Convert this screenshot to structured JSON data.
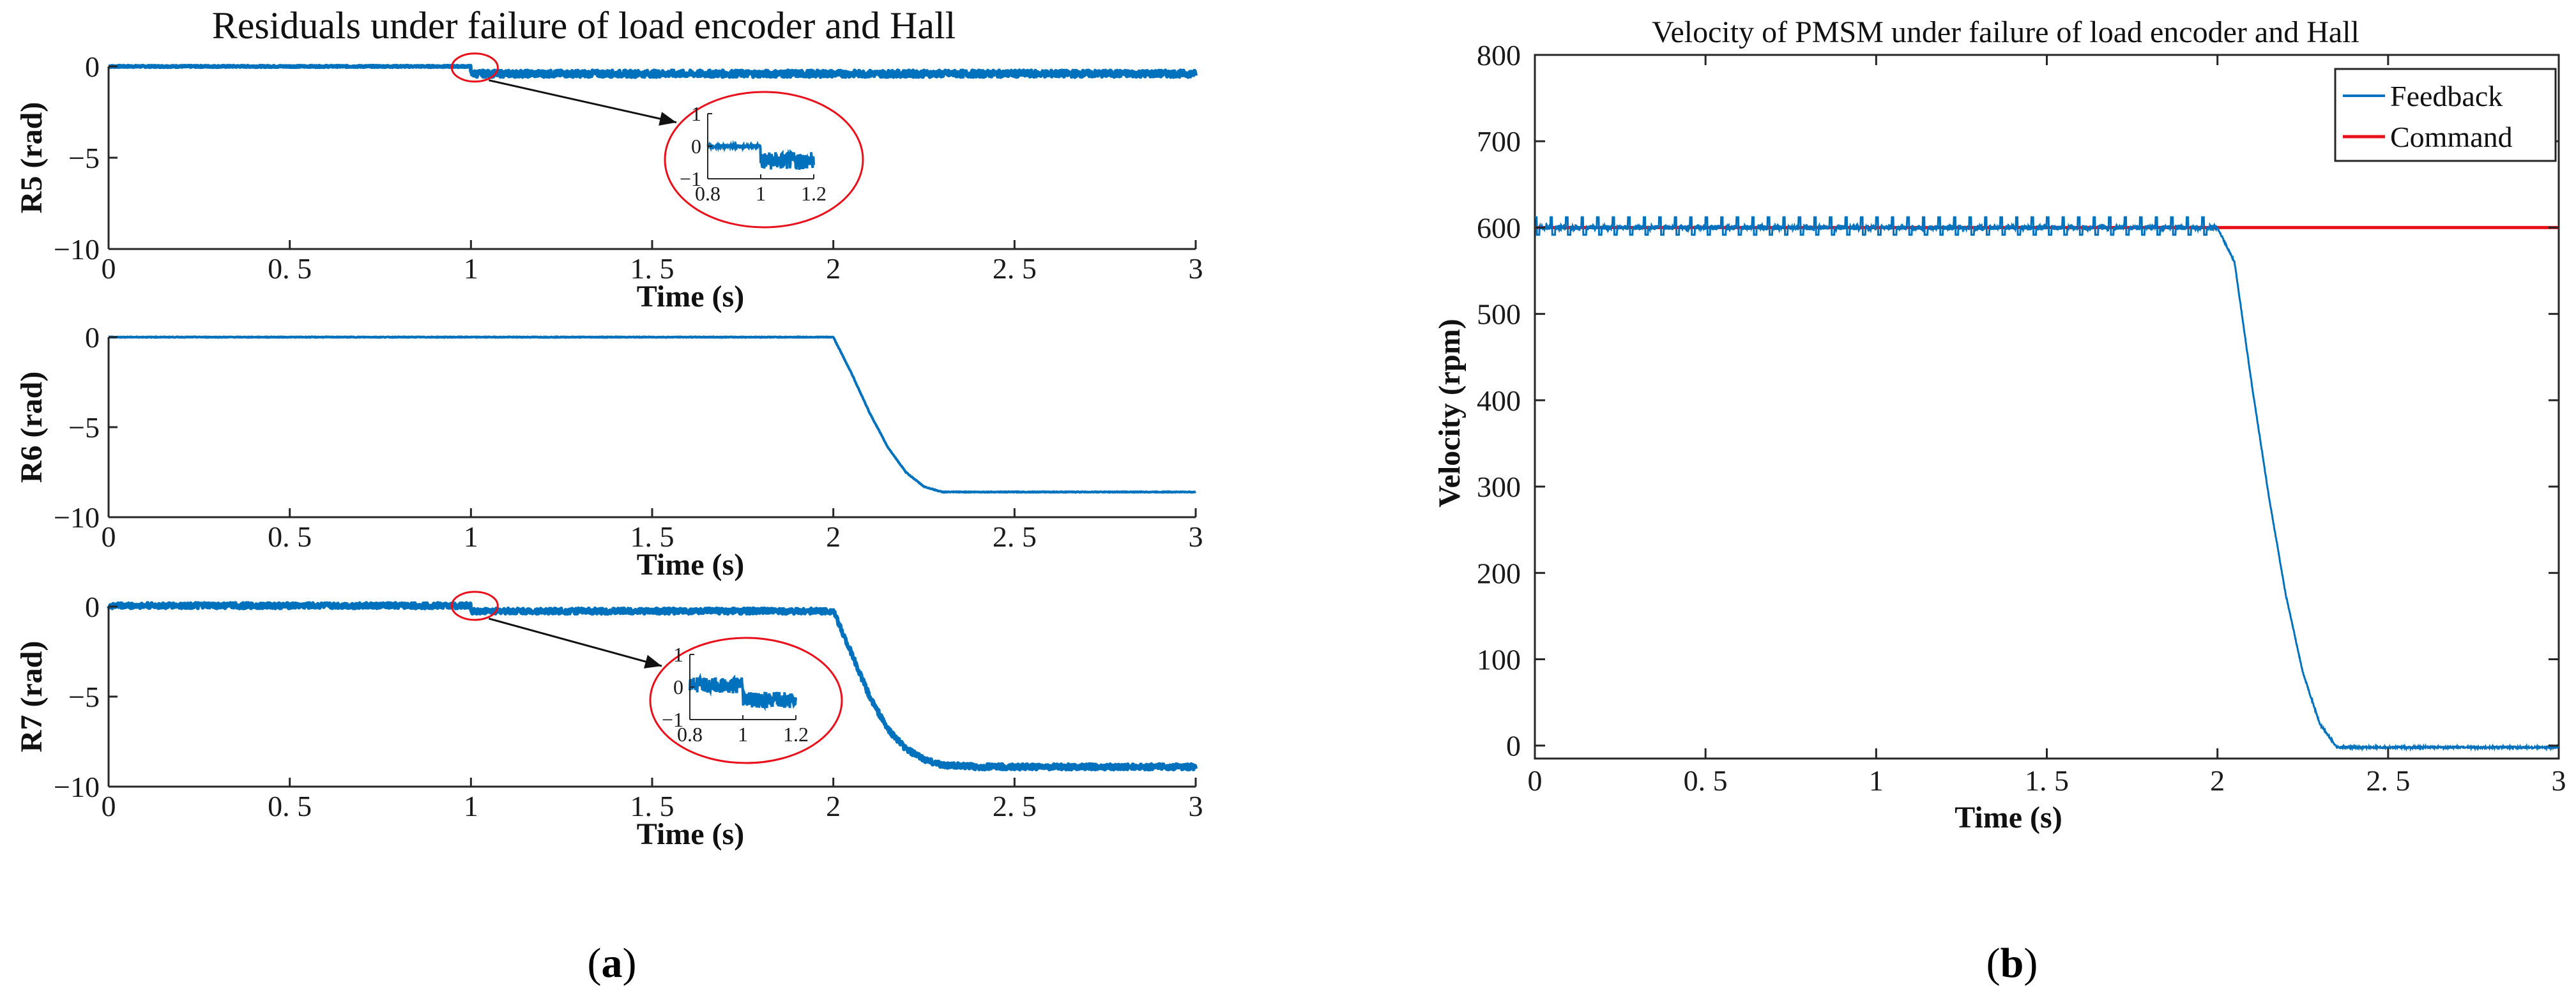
{
  "colors": {
    "feedback": "#0072BD",
    "command": "#E8101A",
    "zoom": "#E8101A",
    "axis": "#262626"
  },
  "panel_a": {
    "title": "Residuals under failure of load encoder and Hall",
    "caption_open": "(",
    "caption_letter": "a",
    "caption_close": ")"
  },
  "panel_b": {
    "caption_open": "(",
    "caption_letter": "b",
    "caption_close": ")"
  },
  "chart_data": [
    {
      "type": "line",
      "title": "Residuals under failure of load encoder and Hall",
      "subplot": "R5",
      "xlabel": "Time (s)",
      "ylabel": "R5 (rad)",
      "xlim": [
        0,
        3
      ],
      "ylim": [
        -10,
        0
      ],
      "xticks": [
        0,
        0.5,
        1,
        1.5,
        2,
        2.5,
        3
      ],
      "xtick_labels": [
        "0",
        "0. 5",
        "1",
        "1. 5",
        "2",
        "2. 5",
        "3"
      ],
      "yticks": [
        0,
        -5,
        -10
      ],
      "ytick_labels": [
        "0",
        "−5",
        "−10"
      ],
      "series": [
        {
          "name": "R5",
          "x": [
            0,
            0.999,
            1.0,
            3.0
          ],
          "y": [
            0,
            0,
            -0.4,
            -0.4
          ],
          "noise_after": 1.0,
          "noise_amplitude": 0.18
        }
      ],
      "inset": {
        "xlim": [
          0.8,
          1.2
        ],
        "ylim": [
          -1,
          1
        ],
        "xtick_labels": [
          "0.8",
          "1",
          "1.2"
        ],
        "xticks": [
          0.8,
          1,
          1.2
        ],
        "ytick_labels": [
          "1",
          "0",
          "−1"
        ],
        "yticks": [
          1,
          0,
          -1
        ],
        "x": [
          0.8,
          0.999,
          1.0,
          1.2
        ],
        "y": [
          0,
          0,
          -0.45,
          -0.45
        ],
        "noise_after": 1.0,
        "noise_amplitude": 0.28,
        "marker_x": 1.0,
        "marker_y": -0.2
      }
    },
    {
      "type": "line",
      "subplot": "R6",
      "xlabel": "Time (s)",
      "ylabel": "R6 (rad)",
      "xlim": [
        0,
        3
      ],
      "ylim": [
        -10,
        0
      ],
      "xticks": [
        0,
        0.5,
        1,
        1.5,
        2,
        2.5,
        3
      ],
      "xtick_labels": [
        "0",
        "0. 5",
        "1",
        "1. 5",
        "2",
        "2. 5",
        "3"
      ],
      "yticks": [
        0,
        -5,
        -10
      ],
      "ytick_labels": [
        "0",
        "−5",
        "−10"
      ],
      "series": [
        {
          "name": "R6",
          "x": [
            0,
            2.0,
            2.05,
            2.1,
            2.15,
            2.2,
            2.25,
            2.3,
            3.0
          ],
          "y": [
            0,
            0,
            -2.0,
            -4.2,
            -6.1,
            -7.5,
            -8.3,
            -8.6,
            -8.6
          ]
        }
      ]
    },
    {
      "type": "line",
      "subplot": "R7",
      "xlabel": "Time (s)",
      "ylabel": "R7 (rad)",
      "xlim": [
        0,
        3
      ],
      "ylim": [
        -10,
        0
      ],
      "xticks": [
        0,
        0.5,
        1,
        1.5,
        2,
        2.5,
        3
      ],
      "xtick_labels": [
        "0",
        "0. 5",
        "1",
        "1. 5",
        "2",
        "2. 5",
        "3"
      ],
      "yticks": [
        0,
        -5,
        -10
      ],
      "ytick_labels": [
        "0",
        "−5",
        "−10"
      ],
      "series": [
        {
          "name": "R7",
          "x": [
            0,
            0.999,
            1.0,
            2.0,
            2.05,
            2.1,
            2.15,
            2.2,
            2.25,
            2.3,
            2.4,
            3.0
          ],
          "y": [
            0.05,
            0.05,
            -0.25,
            -0.25,
            -2.6,
            -5.0,
            -6.8,
            -7.9,
            -8.5,
            -8.8,
            -8.9,
            -8.9
          ],
          "noise_amplitude": 0.15
        }
      ],
      "inset": {
        "xlim": [
          0.8,
          1.2
        ],
        "ylim": [
          -1,
          1
        ],
        "xtick_labels": [
          "0.8",
          "1",
          "1.2"
        ],
        "xticks": [
          0.8,
          1,
          1.2
        ],
        "ytick_labels": [
          "1",
          "0",
          "−1"
        ],
        "yticks": [
          1,
          0,
          -1
        ],
        "x": [
          0.8,
          0.999,
          1.0,
          1.2
        ],
        "y": [
          0.05,
          0.05,
          -0.4,
          -0.4
        ],
        "noise_after": 0.8,
        "noise_amplitude": 0.25,
        "marker_x": 1.0,
        "marker_y": -0.1
      }
    },
    {
      "type": "line",
      "title": "Velocity of PMSM under failure of load encoder and Hall",
      "xlabel": "Time (s)",
      "ylabel": "Velocity (rpm)",
      "xlim": [
        0,
        3
      ],
      "ylim": [
        -15,
        800
      ],
      "xticks": [
        0,
        0.5,
        1,
        1.5,
        2,
        2.5,
        3
      ],
      "xtick_labels": [
        "0",
        "0. 5",
        "1",
        "1. 5",
        "2",
        "2. 5",
        "3"
      ],
      "yticks": [
        0,
        100,
        200,
        300,
        400,
        500,
        600,
        700,
        800
      ],
      "ytick_labels": [
        "0",
        "100",
        "200",
        "300",
        "400",
        "500",
        "600",
        "700",
        "800"
      ],
      "legend": {
        "position": "top-right",
        "entries": [
          "Feedback",
          "Command"
        ]
      },
      "series": [
        {
          "name": "Feedback",
          "x": [
            0,
            2.0,
            2.05,
            2.1,
            2.15,
            2.2,
            2.25,
            2.3,
            2.35,
            3.0
          ],
          "y": [
            600,
            600,
            560,
            420,
            290,
            175,
            85,
            25,
            -2,
            -2
          ],
          "ripple_until": 2.0,
          "ripple_amplitude": 12
        },
        {
          "name": "Command",
          "x": [
            0,
            3.0
          ],
          "y": [
            600,
            600
          ]
        }
      ]
    }
  ]
}
